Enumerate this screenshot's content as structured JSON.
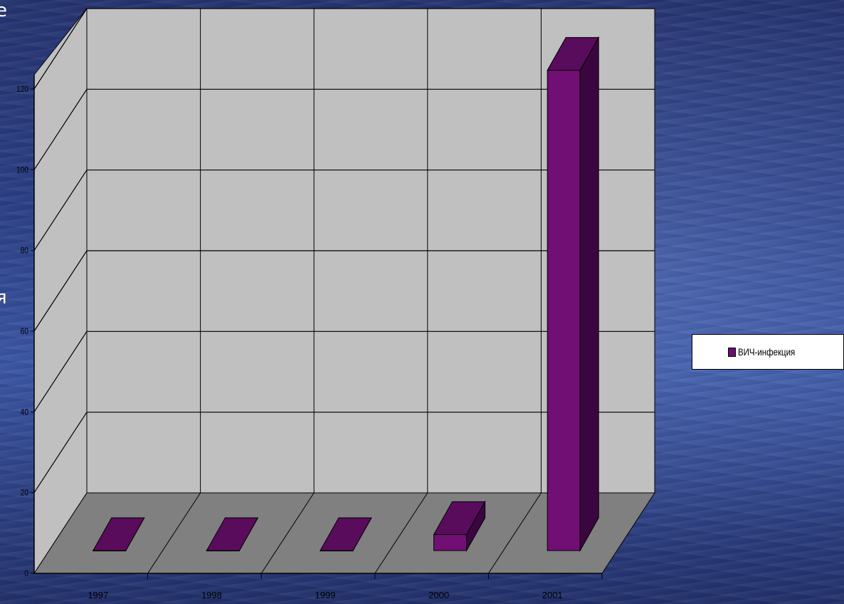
{
  "slide": {
    "edge_fragment_top": "е",
    "edge_fragment_mid": "я"
  },
  "colors": {
    "bar_front": "#720f74",
    "bar_top": "#5a0c5c",
    "bar_side": "#3b0640",
    "back_wall": "#c0c0c0",
    "floor": "#808080",
    "gridline": "#000000"
  },
  "chart_data": {
    "type": "bar",
    "style": "3d-column",
    "categories": [
      "1997",
      "1998",
      "1999",
      "2000",
      "2001"
    ],
    "series": [
      {
        "name": "ВИЧ-инфекция",
        "values": [
          0,
          0,
          0,
          4,
          119
        ]
      }
    ],
    "ylim": [
      0,
      120
    ],
    "yticks": [
      "0",
      "20",
      "40",
      "60",
      "80",
      "100",
      "120"
    ],
    "grid": true,
    "legend_position": "right"
  }
}
